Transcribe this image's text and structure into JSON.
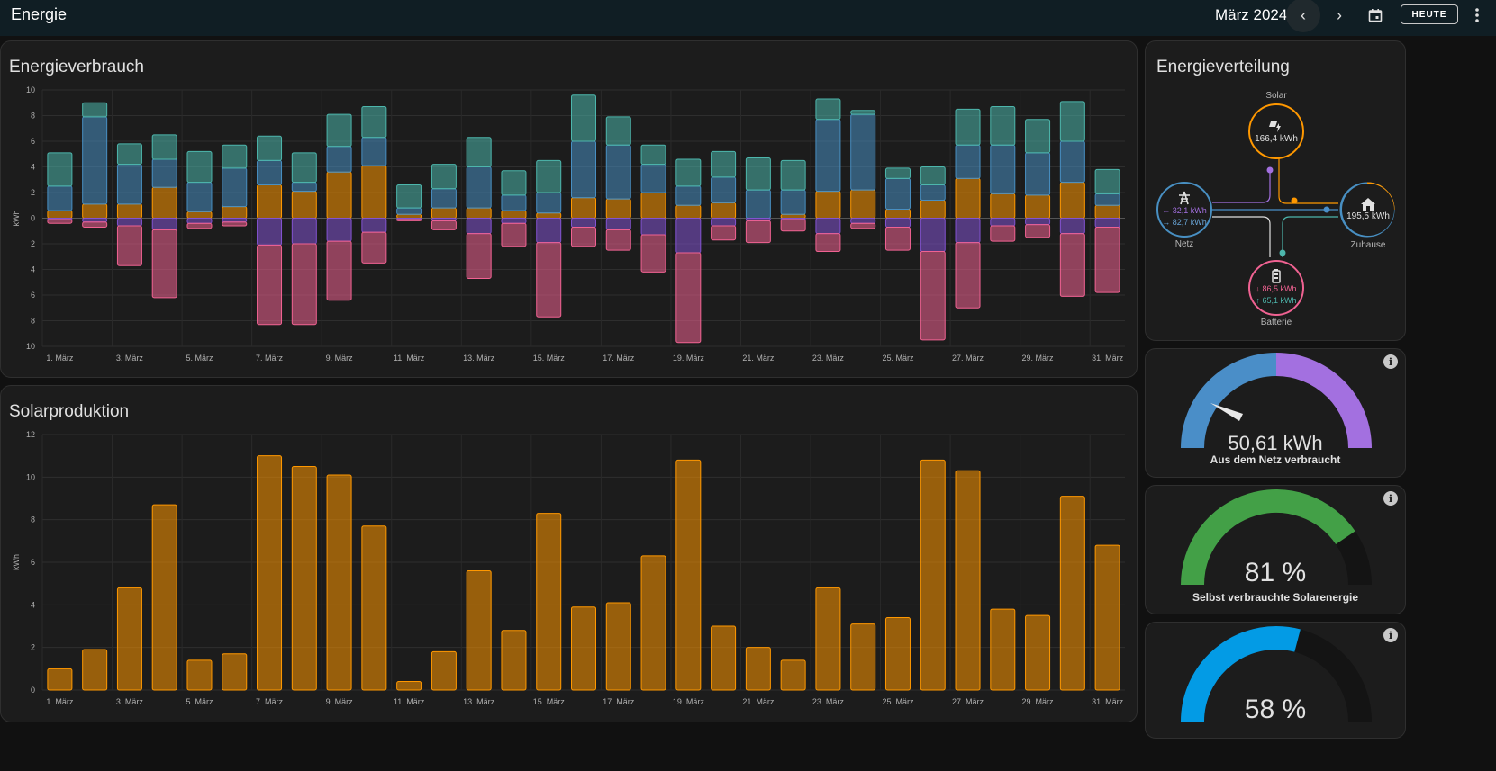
{
  "header": {
    "title": "Energie",
    "period": "März 2024",
    "today_label": "HEUTE"
  },
  "colors": {
    "solar": "#ff9800",
    "grid_import": "#488fc2",
    "grid_export": "#8353d1",
    "battery_in": "#f06292",
    "battery_out": "#4db6ac",
    "self_consumed": "#43a047",
    "autarky": "#1e88e5"
  },
  "consumption": {
    "title": "Energieverbrauch",
    "ylabel": "kWh",
    "chart_data": {
      "type": "bar",
      "stacked": true,
      "x": [
        "1. März",
        "2. März",
        "3. März",
        "4. März",
        "5. März",
        "6. März",
        "7. März",
        "8. März",
        "9. März",
        "10. März",
        "11. März",
        "12. März",
        "13. März",
        "14. März",
        "15. März",
        "16. März",
        "17. März",
        "18. März",
        "19. März",
        "20. März",
        "21. März",
        "22. März",
        "23. März",
        "24. März",
        "25. März",
        "26. März",
        "27. März",
        "28. März",
        "29. März",
        "30. März",
        "31. März"
      ],
      "tick_labels": [
        "1. März",
        "3. März",
        "5. März",
        "7. März",
        "9. März",
        "11. März",
        "13. März",
        "15. März",
        "17. März",
        "19. März",
        "21. März",
        "23. März",
        "25. März",
        "27. März",
        "29. März",
        "31. März"
      ],
      "yticks": [
        "10",
        "8",
        "6",
        "4",
        "2",
        "0",
        "2",
        "4",
        "6",
        "8",
        "10"
      ],
      "ylim": [
        -10,
        10
      ],
      "grid": true,
      "series": [
        {
          "color_key": "solar",
          "values": [
            0.6,
            1.1,
            1.1,
            2.4,
            0.5,
            0.9,
            2.6,
            2.1,
            3.6,
            4.1,
            0.3,
            0.8,
            0.8,
            0.6,
            0.4,
            1.6,
            1.5,
            2.0,
            1.0,
            1.2,
            0.0,
            0.3,
            2.1,
            2.2,
            0.7,
            1.4,
            3.1,
            1.9,
            1.8,
            2.8,
            1.0
          ]
        },
        {
          "color_key": "grid_import",
          "values": [
            1.9,
            6.8,
            3.1,
            2.2,
            2.3,
            3.0,
            1.9,
            0.7,
            2.0,
            2.2,
            0.5,
            1.5,
            3.2,
            1.2,
            1.6,
            4.4,
            4.2,
            2.2,
            1.5,
            2.0,
            2.2,
            1.9,
            5.6,
            5.9,
            2.4,
            1.2,
            2.6,
            3.8,
            3.3,
            3.2,
            0.9
          ]
        },
        {
          "color_key": "battery_out",
          "values": [
            2.6,
            1.1,
            1.6,
            1.9,
            2.4,
            1.8,
            1.9,
            2.3,
            2.5,
            2.4,
            1.8,
            1.9,
            2.3,
            1.9,
            2.5,
            3.6,
            2.2,
            1.5,
            2.1,
            2.0,
            2.5,
            2.3,
            1.6,
            0.3,
            0.8,
            1.4,
            2.8,
            3.0,
            2.6,
            3.1,
            1.9
          ]
        },
        {
          "color_key": "grid_export",
          "values": [
            -0.1,
            -0.3,
            -0.6,
            -0.9,
            -0.4,
            -0.3,
            -2.1,
            -2.0,
            -1.8,
            -1.1,
            -0.1,
            -0.2,
            -1.2,
            -0.4,
            -1.9,
            -0.7,
            -0.9,
            -1.3,
            -2.7,
            -0.6,
            -0.2,
            -0.1,
            -1.2,
            -0.4,
            -0.7,
            -2.6,
            -1.9,
            -0.6,
            -0.5,
            -1.2,
            -0.7
          ]
        },
        {
          "color_key": "battery_in",
          "values": [
            -0.3,
            -0.4,
            -3.1,
            -5.3,
            -0.4,
            -0.3,
            -6.2,
            -6.3,
            -4.6,
            -2.4,
            -0.1,
            -0.7,
            -3.5,
            -1.8,
            -5.8,
            -1.5,
            -1.6,
            -2.9,
            -7.0,
            -1.1,
            -1.7,
            -0.9,
            -1.4,
            -0.4,
            -1.8,
            -6.9,
            -5.1,
            -1.2,
            -1.0,
            -4.9,
            -5.1
          ]
        }
      ]
    }
  },
  "solar_production": {
    "title": "Solarproduktion",
    "ylabel": "kWh",
    "chart_data": {
      "type": "bar",
      "x": [
        "1. März",
        "2. März",
        "3. März",
        "4. März",
        "5. März",
        "6. März",
        "7. März",
        "8. März",
        "9. März",
        "10. März",
        "11. März",
        "12. März",
        "13. März",
        "14. März",
        "15. März",
        "16. März",
        "17. März",
        "18. März",
        "19. März",
        "20. März",
        "21. März",
        "22. März",
        "23. März",
        "24. März",
        "25. März",
        "26. März",
        "27. März",
        "28. März",
        "29. März",
        "30. März",
        "31. März"
      ],
      "tick_labels": [
        "1. März",
        "3. März",
        "5. März",
        "7. März",
        "9. März",
        "11. März",
        "13. März",
        "15. März",
        "17. März",
        "19. März",
        "21. März",
        "23. März",
        "25. März",
        "27. März",
        "29. März",
        "31. März"
      ],
      "yticks": [
        "0",
        "2",
        "4",
        "6",
        "8",
        "10",
        "12"
      ],
      "ylim": [
        0,
        12
      ],
      "grid": true,
      "values": [
        1.0,
        1.9,
        4.8,
        8.7,
        1.4,
        1.7,
        11.0,
        10.5,
        10.1,
        7.7,
        0.4,
        1.8,
        5.6,
        2.8,
        8.3,
        3.9,
        4.1,
        6.3,
        10.8,
        3.0,
        2.0,
        1.4,
        4.8,
        3.1,
        3.4,
        10.8,
        10.3,
        3.8,
        3.5,
        9.1,
        6.8
      ]
    }
  },
  "distribution": {
    "title": "Energieverteilung",
    "solar": {
      "label": "Solar",
      "value": "166,4 kWh"
    },
    "grid": {
      "label": "Netz",
      "from": "← 32,1 kWh",
      "to": "→ 82,7 kWh"
    },
    "home": {
      "label": "Zuhause",
      "value": "195,5 kWh"
    },
    "battery": {
      "label": "Batterie",
      "in": "↓ 86,5 kWh",
      "out": "↑ 65,1 kWh"
    }
  },
  "gauges": [
    {
      "value": "50,61 kWh",
      "label": "Aus dem Netz verbraucht",
      "fraction": 0.5
    },
    {
      "value": "81 %",
      "label": "Selbst verbrauchte Solarenergie",
      "fraction": 0.81
    },
    {
      "value": "58 %",
      "label": "",
      "fraction": 0.58
    }
  ]
}
